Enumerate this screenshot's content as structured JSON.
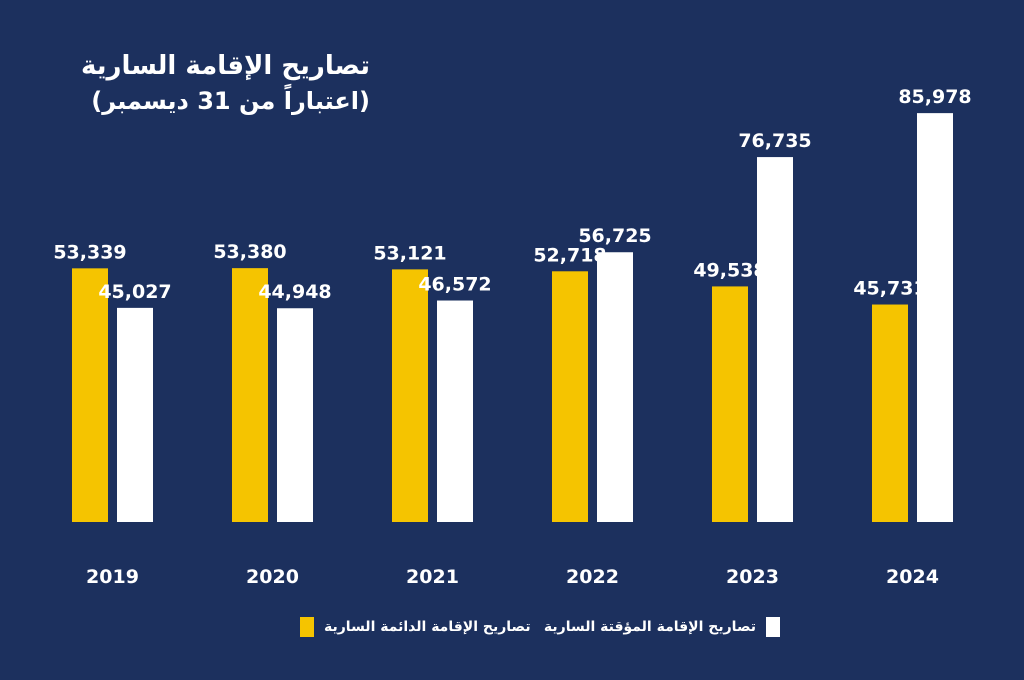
{
  "chart_data": {
    "type": "bar",
    "title": "تصاريح الإقامة السارية",
    "subtitle": "(اعتباراً من 31 ديسمبر)",
    "categories": [
      "2019",
      "2020",
      "2021",
      "2022",
      "2023",
      "2024"
    ],
    "series": [
      {
        "name": "تصاريح الإقامة الدائمة السارية",
        "color": "#f5c400",
        "values": [
          53339,
          53380,
          53121,
          52718,
          49538,
          45731
        ],
        "labels": [
          "53,339",
          "53,380",
          "53,121",
          "52,718",
          "49,538",
          "45,731"
        ]
      },
      {
        "name": "تصاريح الإقامة المؤقتة السارية",
        "color": "#ffffff",
        "values": [
          45027,
          44948,
          46572,
          56725,
          76735,
          85978
        ],
        "labels": [
          "45,027",
          "44,948",
          "46,572",
          "56,725",
          "76,735",
          "85,978"
        ]
      }
    ],
    "ylim": [
      0,
      90000
    ],
    "grid": false,
    "legend_position": "bottom"
  },
  "colors": {
    "background": "#1c305e",
    "permanent": "#f5c400",
    "temporary": "#ffffff"
  }
}
